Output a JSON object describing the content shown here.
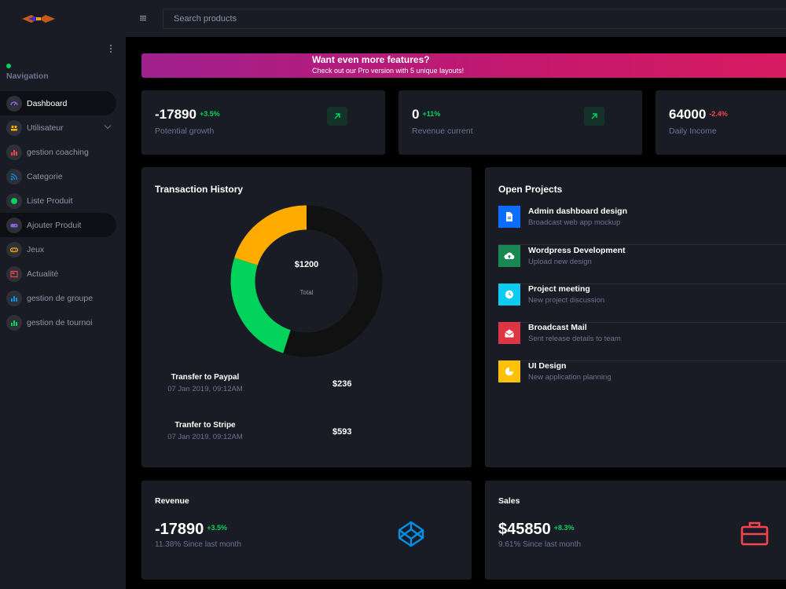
{
  "colors": {
    "accent": "#00d25b",
    "danger": "#fc424a",
    "background": "#000000",
    "card": "#191c24",
    "muted": "#6c7293"
  },
  "header": {
    "logo_icon": "brand-logo",
    "menu_icon": "hamburger-icon",
    "search_placeholder": "Search products"
  },
  "sidebar": {
    "heading": "Navigation",
    "items": [
      {
        "label": "Dashboard",
        "icon": "speedometer-icon",
        "color": "#8f5fe8"
      },
      {
        "label": "Utilisateur",
        "icon": "users-icon",
        "color": "#ffab00"
      },
      {
        "label": "gestion coaching",
        "icon": "chart-icon",
        "color": "#fc424a"
      },
      {
        "label": "Categorie",
        "icon": "rss-icon",
        "color": "#0090e7"
      },
      {
        "label": "Liste Produit",
        "icon": "circle-icon",
        "color": "#00d25b"
      },
      {
        "label": "Ajouter Produit",
        "icon": "gamepad-icon",
        "color": "#8f5fe8"
      },
      {
        "label": "Jeux",
        "icon": "controller-icon",
        "color": "#ffab00"
      },
      {
        "label": "Actualité",
        "icon": "news-icon",
        "color": "#fc424a"
      },
      {
        "label": "gestion de groupe",
        "icon": "chart-icon",
        "color": "#0090e7"
      },
      {
        "label": "gestion de tournoi",
        "icon": "chart-icon",
        "color": "#00d25b"
      }
    ]
  },
  "promo": {
    "title": "Want even more features?",
    "subtitle": "Check out our Pro version with 5 unique layouts!"
  },
  "stats": [
    {
      "value": "-17890",
      "change": "+3.5%",
      "trend": "up",
      "label": "Potential growth"
    },
    {
      "value": "0",
      "change": "+11%",
      "trend": "up",
      "label": "Revenue current"
    },
    {
      "value": "64000",
      "change": "-2.4%",
      "trend": "down",
      "label": "Daily Income"
    }
  ],
  "transaction_history": {
    "title": "Transaction History",
    "total_amount": "$1200",
    "total_label": "Total",
    "transactions": [
      {
        "title": "Transfer to Paypal",
        "date": "07 Jan 2019, 09:12AM",
        "amount": "$236"
      },
      {
        "title": "Tranfer to Stripe",
        "date": "07 Jan 2019, 09:12AM",
        "amount": "$593"
      }
    ]
  },
  "chart_data": {
    "type": "pie",
    "style": "donut",
    "categories": [
      "Dark",
      "Green",
      "Orange"
    ],
    "values": [
      55,
      25,
      20
    ],
    "colors": [
      "#111111",
      "#00d25b",
      "#ffab00"
    ]
  },
  "open_projects": {
    "title": "Open Projects",
    "items": [
      {
        "title": "Admin dashboard design",
        "subtitle": "Broadcast web app mockup",
        "icon": "file-icon",
        "color": "#0d6efd"
      },
      {
        "title": "Wordpress Development",
        "subtitle": "Upload new design",
        "icon": "cloud-upload-icon",
        "color": "#198754"
      },
      {
        "title": "Project meeting",
        "subtitle": "New project discussion",
        "icon": "clock-icon",
        "color": "#0dcaf0"
      },
      {
        "title": "Broadcast Mail",
        "subtitle": "Sent release details to team",
        "icon": "mail-open-icon",
        "color": "#dc3545"
      },
      {
        "title": "UI Design",
        "subtitle": "New application planning",
        "icon": "pie-chart-icon",
        "color": "#ffc107"
      }
    ]
  },
  "revenue": {
    "title": "Revenue",
    "value": "-17890",
    "change": "+3.5%",
    "subtitle": "11.38% Since last month",
    "icon": "codepen-icon"
  },
  "sales": {
    "title": "Sales",
    "value": "$45850",
    "change": "+8.3%",
    "subtitle": "9.61% Since last month",
    "icon": "briefcase-icon"
  }
}
